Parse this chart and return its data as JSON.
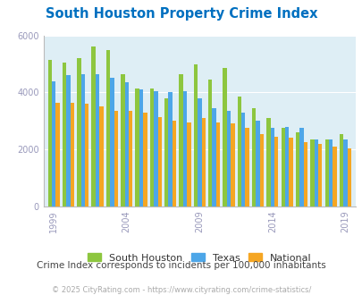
{
  "title": "South Houston Property Crime Index",
  "subtitle": "Crime Index corresponds to incidents per 100,000 inhabitants",
  "footer": "© 2025 CityRating.com - https://www.cityrating.com/crime-statistics/",
  "years": [
    1999,
    2000,
    2001,
    2002,
    2003,
    2004,
    2005,
    2006,
    2007,
    2008,
    2009,
    2010,
    2011,
    2012,
    2013,
    2014,
    2015,
    2016,
    2017,
    2018,
    2019,
    2020
  ],
  "south_houston": [
    5150,
    5050,
    5200,
    5600,
    5500,
    4650,
    4150,
    4150,
    3800,
    4650,
    5000,
    4450,
    4850,
    3850,
    3450,
    3100,
    2750,
    2600,
    2350,
    2350,
    2550,
    null
  ],
  "texas": [
    4400,
    4600,
    4650,
    4650,
    4500,
    4350,
    4100,
    4050,
    4000,
    4050,
    3800,
    3450,
    3350,
    3300,
    3000,
    2750,
    2800,
    2750,
    2350,
    2350,
    2350,
    null
  ],
  "national": [
    3650,
    3650,
    3600,
    3500,
    3350,
    3350,
    3300,
    3150,
    3000,
    2950,
    3100,
    2950,
    2900,
    2750,
    2550,
    2450,
    2400,
    2250,
    2200,
    2100,
    2050,
    null
  ],
  "colors": {
    "south_houston": "#8dc63f",
    "texas": "#4da6e8",
    "national": "#f5a623"
  },
  "background_color": "#deeef5",
  "ylim": [
    0,
    6000
  ],
  "yticks": [
    0,
    2000,
    4000,
    6000
  ],
  "title_color": "#0070c0",
  "subtitle_color": "#444444",
  "footer_color": "#aaaaaa",
  "tick_label_color": "#9999bb",
  "grid_color": "#ffffff",
  "bar_width": 0.27
}
